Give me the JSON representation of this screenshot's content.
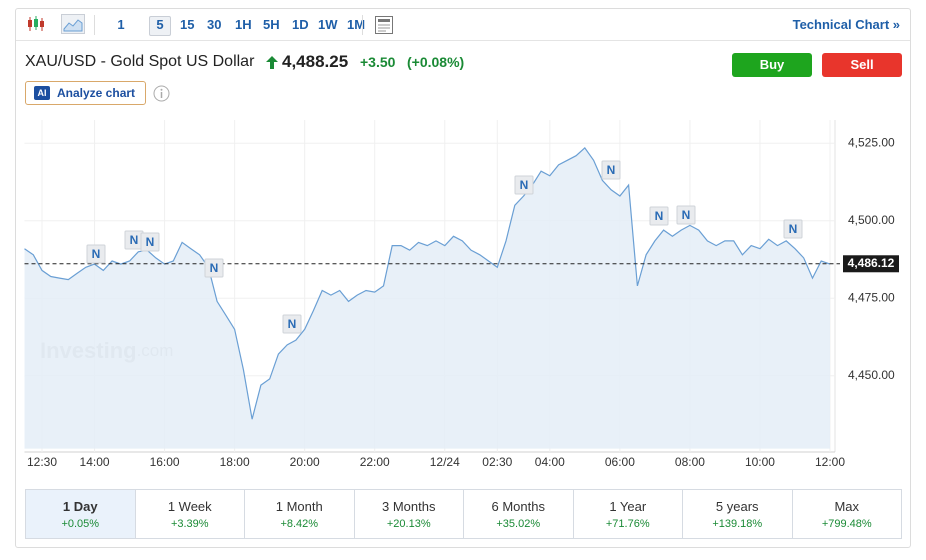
{
  "toolbar": {
    "intervals": [
      "1",
      "5",
      "15",
      "30",
      "1H",
      "5H",
      "1D",
      "1W",
      "1M"
    ],
    "technical_chart": "Technical Chart »"
  },
  "header": {
    "instrument": "XAU/USD - Gold Spot US Dollar",
    "price": "4,488.25",
    "change": "+3.50",
    "change_pct": "(+0.08%)",
    "buy": "Buy",
    "sell": "Sell",
    "ai_badge": "AI",
    "analyze": "Analyze chart"
  },
  "chart_data": {
    "type": "line",
    "watermark": "Investing",
    "watermark_suffix": ".com",
    "news_label": "N",
    "color": "#6a9fd4",
    "grid": true,
    "categories": [
      null,
      null,
      "12:30",
      null,
      null,
      null,
      null,
      null,
      "14:00",
      null,
      null,
      null,
      null,
      null,
      null,
      null,
      "16:00",
      null,
      null,
      null,
      null,
      null,
      null,
      null,
      "18:00",
      null,
      null,
      null,
      null,
      null,
      null,
      null,
      "20:00",
      null,
      null,
      null,
      null,
      null,
      null,
      null,
      "22:00",
      null,
      null,
      null,
      null,
      null,
      null,
      null,
      "12/24",
      null,
      null,
      null,
      null,
      null,
      "02:30",
      null,
      null,
      null,
      null,
      null,
      "04:00",
      null,
      null,
      null,
      null,
      null,
      null,
      null,
      "06:00",
      null,
      null,
      null,
      null,
      null,
      null,
      null,
      "08:00",
      null,
      null,
      null,
      null,
      null,
      null,
      null,
      "10:00",
      null,
      null,
      null,
      null,
      null,
      null,
      null,
      "12:00"
    ],
    "values": [
      4491,
      4489,
      4484,
      4482,
      4481.5,
      4481,
      4483,
      4485,
      4486,
      4484,
      4487,
      4486,
      4487,
      4490,
      4490.5,
      4488,
      4486,
      4487,
      4493,
      4491,
      4489,
      4485,
      4474,
      4469.5,
      4465,
      4452,
      4436,
      4447,
      4449,
      4457,
      4460,
      4461.5,
      4465,
      4471,
      4477.5,
      4476,
      4477.5,
      4474,
      4476,
      4477.5,
      4477,
      4479,
      4492,
      4492,
      4490.5,
      4493,
      4492,
      4493.5,
      4492,
      4495,
      4493.5,
      4490.5,
      4489,
      4487,
      4485,
      4493.5,
      4505,
      4508,
      4511.5,
      4516,
      4514.5,
      4518,
      4519.5,
      4521,
      4523.5,
      4519.5,
      4513,
      4510,
      4508,
      4511.5,
      4479,
      4489,
      4493.5,
      4497,
      4495,
      4497,
      4498.5,
      4497,
      4493.5,
      4492,
      4493.5,
      4493.5,
      4489,
      4492,
      4491,
      4494,
      4492,
      4493.5,
      4491,
      4488,
      4481.5,
      4487,
      4486
    ],
    "ylim": [
      4426.5,
      4532.5
    ],
    "yticks": [
      {
        "value": 4450,
        "label": "4,450.00"
      },
      {
        "value": 4475,
        "label": "4,475.00"
      },
      {
        "value": 4500,
        "label": "4,500.00"
      },
      {
        "value": 4525,
        "label": "4,525.00"
      }
    ],
    "last_price": {
      "value": 4486.12,
      "label": "4,486.12"
    }
  },
  "periods": [
    {
      "label": "1 Day",
      "change": "+0.05%"
    },
    {
      "label": "1 Week",
      "change": "+3.39%"
    },
    {
      "label": "1 Month",
      "change": "+8.42%"
    },
    {
      "label": "3 Months",
      "change": "+20.13%"
    },
    {
      "label": "6 Months",
      "change": "+35.02%"
    },
    {
      "label": "1 Year",
      "change": "+71.76%"
    },
    {
      "label": "5 years",
      "change": "+139.18%"
    },
    {
      "label": "Max",
      "change": "+799.48%"
    }
  ]
}
